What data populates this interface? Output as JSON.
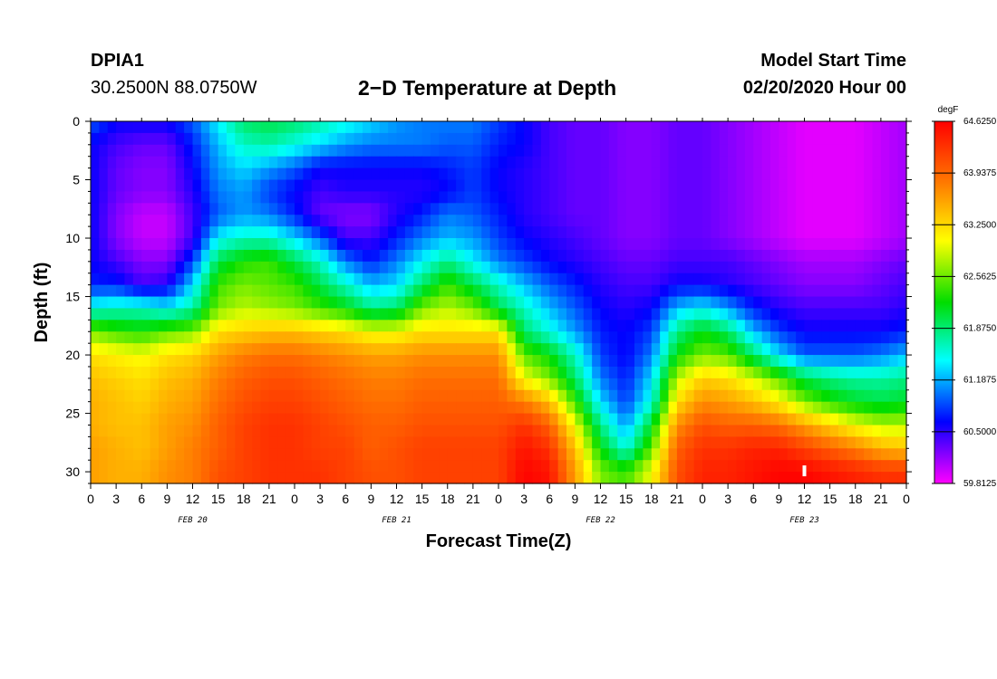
{
  "header": {
    "station": "DPIA1",
    "coords": "30.2500N 88.0750W",
    "title": "2−D Temperature at Depth",
    "start_label": "Model Start Time",
    "start_value": "02/20/2020 Hour 00"
  },
  "chart_data": {
    "type": "heatmap",
    "title": "2−D Temperature at Depth",
    "xlabel": "Forecast Time(Z)",
    "ylabel": "Depth (ft)",
    "colorbar_unit": "degF",
    "x_range_hours": [
      0,
      96
    ],
    "y_range_ft": [
      0,
      31
    ],
    "x_tick_labels": [
      "0",
      "3",
      "6",
      "9",
      "12",
      "15",
      "18",
      "21",
      "0",
      "3",
      "6",
      "9",
      "12",
      "15",
      "18",
      "21",
      "0",
      "3",
      "6",
      "9",
      "12",
      "15",
      "18",
      "21",
      "0",
      "3",
      "6",
      "9",
      "12",
      "15",
      "18",
      "21",
      "0"
    ],
    "y_ticks": [
      0,
      5,
      10,
      15,
      20,
      25,
      30
    ],
    "date_labels": [
      {
        "label": "FEB 20",
        "hour": 12
      },
      {
        "label": "FEB 21",
        "hour": 36
      },
      {
        "label": "FEB 22",
        "hour": 60
      },
      {
        "label": "FEB 23",
        "hour": 84
      }
    ],
    "colorbar_labels": [
      "64.6250",
      "63.9375",
      "63.2500",
      "62.5625",
      "61.8750",
      "61.1875",
      "60.5000",
      "59.8125"
    ],
    "colors": [
      "#ff0000",
      "#ff7a00",
      "#ffff00",
      "#00dd00",
      "#00ffff",
      "#0000ff",
      "#ff00ff"
    ],
    "vmin": 59.8125,
    "vmax": 64.625,
    "x_hours": [
      0,
      3,
      6,
      9,
      12,
      15,
      18,
      21,
      24,
      27,
      30,
      33,
      36,
      39,
      42,
      45,
      48,
      51,
      54,
      57,
      60,
      63,
      66,
      69,
      72,
      75,
      78,
      81,
      84,
      87,
      90,
      93,
      96
    ],
    "depths_ft": [
      0,
      2,
      4,
      6,
      8,
      10,
      12,
      14,
      16,
      18,
      20,
      22,
      24,
      26,
      28,
      30
    ],
    "temperature_degF": [
      [
        60.9,
        60.6,
        60.6,
        60.6,
        60.9,
        61.4,
        61.9,
        62.0,
        61.9,
        61.7,
        61.5,
        61.3,
        61.1,
        61.0,
        61.0,
        61.0,
        60.8,
        60.6,
        60.4,
        60.3,
        60.3,
        60.2,
        60.2,
        60.3,
        60.3,
        60.2,
        60.1,
        60.0,
        59.9,
        59.9,
        59.9,
        60.0,
        60.1
      ],
      [
        60.6,
        60.4,
        60.3,
        60.3,
        60.7,
        61.2,
        61.6,
        61.7,
        61.5,
        61.3,
        61.1,
        61.0,
        61.0,
        61.0,
        60.9,
        60.9,
        60.7,
        60.6,
        60.4,
        60.3,
        60.3,
        60.2,
        60.2,
        60.3,
        60.3,
        60.2,
        60.1,
        60.0,
        59.9,
        59.9,
        59.9,
        60.0,
        60.1
      ],
      [
        60.6,
        60.3,
        60.2,
        60.2,
        60.6,
        61.1,
        61.3,
        61.1,
        60.9,
        60.6,
        60.6,
        60.6,
        60.6,
        60.6,
        60.7,
        60.8,
        60.6,
        60.5,
        60.4,
        60.3,
        60.3,
        60.2,
        60.2,
        60.3,
        60.3,
        60.2,
        60.1,
        60.0,
        59.9,
        59.9,
        59.9,
        60.0,
        60.1
      ],
      [
        60.6,
        60.3,
        60.2,
        60.2,
        60.5,
        61.0,
        61.1,
        60.8,
        60.6,
        60.4,
        60.5,
        60.5,
        60.5,
        60.5,
        60.6,
        60.8,
        60.6,
        60.5,
        60.4,
        60.3,
        60.3,
        60.2,
        60.2,
        60.3,
        60.3,
        60.2,
        60.1,
        60.0,
        59.9,
        59.9,
        59.9,
        60.0,
        60.1
      ],
      [
        60.6,
        60.2,
        60.0,
        60.0,
        60.4,
        60.9,
        61.1,
        61.0,
        60.7,
        60.3,
        60.2,
        60.2,
        60.5,
        60.7,
        61.0,
        60.9,
        60.7,
        60.5,
        60.4,
        60.3,
        60.3,
        60.2,
        60.2,
        60.3,
        60.3,
        60.2,
        60.1,
        60.0,
        59.9,
        59.9,
        59.9,
        60.0,
        60.1
      ],
      [
        60.6,
        60.2,
        60.0,
        60.0,
        60.4,
        61.4,
        61.6,
        61.6,
        61.3,
        60.9,
        60.4,
        60.4,
        60.7,
        61.0,
        61.2,
        61.1,
        60.8,
        60.6,
        60.5,
        60.4,
        60.3,
        60.2,
        60.2,
        60.3,
        60.3,
        60.2,
        60.1,
        60.0,
        59.9,
        59.9,
        59.9,
        60.0,
        60.1
      ],
      [
        60.6,
        60.4,
        60.2,
        60.2,
        60.8,
        62.0,
        62.3,
        62.4,
        62.0,
        61.6,
        61.0,
        60.7,
        61.0,
        61.4,
        61.8,
        61.4,
        61.0,
        60.8,
        60.6,
        60.5,
        60.4,
        60.3,
        60.3,
        60.4,
        60.4,
        60.4,
        60.3,
        60.2,
        60.1,
        60.1,
        60.1,
        60.2,
        60.3
      ],
      [
        60.7,
        60.7,
        60.4,
        60.5,
        61.3,
        62.4,
        62.6,
        62.5,
        62.4,
        62.0,
        61.6,
        61.2,
        61.3,
        61.9,
        62.4,
        62.0,
        61.6,
        61.2,
        60.9,
        60.7,
        60.5,
        60.4,
        60.4,
        60.6,
        60.6,
        60.5,
        60.4,
        60.3,
        60.2,
        60.2,
        60.2,
        60.3,
        60.4
      ],
      [
        61.5,
        61.6,
        61.6,
        61.4,
        61.7,
        62.6,
        62.8,
        62.7,
        62.6,
        62.4,
        62.2,
        61.8,
        61.9,
        62.6,
        62.8,
        62.6,
        62.0,
        61.6,
        61.2,
        60.9,
        60.6,
        60.5,
        60.6,
        61.2,
        61.4,
        61.1,
        60.7,
        60.5,
        60.4,
        60.4,
        60.4,
        60.4,
        60.5
      ],
      [
        62.6,
        62.4,
        62.3,
        62.5,
        62.6,
        63.2,
        63.3,
        63.4,
        63.4,
        63.3,
        63.2,
        63.0,
        63.0,
        63.2,
        63.2,
        63.2,
        63.2,
        61.9,
        61.5,
        61.1,
        60.7,
        60.6,
        60.8,
        61.8,
        62.2,
        61.9,
        61.2,
        60.8,
        60.6,
        60.6,
        60.6,
        60.6,
        60.7
      ],
      [
        63.2,
        63.1,
        63.0,
        63.2,
        63.3,
        63.6,
        63.8,
        63.9,
        63.9,
        63.8,
        63.7,
        63.6,
        63.6,
        63.7,
        63.7,
        63.7,
        63.7,
        62.5,
        62.2,
        61.6,
        60.8,
        60.6,
        61.0,
        62.2,
        62.6,
        62.5,
        61.9,
        61.3,
        60.9,
        60.9,
        60.9,
        61.0,
        61.2
      ],
      [
        63.4,
        63.3,
        63.2,
        63.4,
        63.5,
        63.8,
        64.0,
        64.1,
        64.1,
        64.0,
        63.9,
        63.8,
        63.8,
        63.9,
        63.9,
        63.9,
        63.9,
        63.0,
        62.6,
        61.9,
        61.0,
        60.7,
        61.3,
        62.8,
        63.3,
        63.2,
        62.9,
        62.5,
        62.0,
        61.8,
        61.7,
        61.7,
        61.8
      ],
      [
        63.5,
        63.4,
        63.3,
        63.5,
        63.6,
        63.9,
        64.1,
        64.2,
        64.2,
        64.1,
        64.0,
        63.9,
        63.9,
        64.0,
        64.0,
        64.0,
        64.0,
        63.8,
        63.4,
        62.4,
        61.3,
        60.8,
        61.5,
        63.2,
        63.7,
        63.6,
        63.4,
        63.1,
        62.6,
        62.3,
        62.1,
        62.0,
        62.1
      ],
      [
        63.5,
        63.4,
        63.4,
        63.6,
        63.7,
        64.0,
        64.2,
        64.3,
        64.3,
        64.2,
        64.1,
        64.0,
        64.0,
        64.1,
        64.1,
        64.1,
        64.1,
        64.3,
        64.0,
        63.0,
        61.8,
        61.1,
        62.1,
        63.7,
        64.1,
        64.0,
        64.0,
        63.9,
        63.6,
        63.3,
        63.0,
        62.8,
        62.8
      ],
      [
        63.6,
        63.5,
        63.4,
        63.6,
        63.8,
        64.0,
        64.2,
        64.3,
        64.3,
        64.2,
        64.2,
        64.0,
        64.1,
        64.2,
        64.2,
        64.2,
        64.2,
        64.5,
        64.3,
        63.4,
        62.2,
        61.5,
        62.5,
        64.0,
        64.3,
        64.3,
        64.4,
        64.4,
        64.2,
        64.0,
        63.8,
        63.5,
        63.4
      ],
      [
        63.6,
        63.5,
        63.5,
        63.7,
        63.8,
        64.1,
        64.2,
        64.3,
        64.3,
        64.3,
        64.2,
        64.1,
        64.1,
        64.2,
        64.2,
        64.2,
        64.2,
        64.6,
        64.5,
        63.6,
        62.6,
        62.4,
        63.0,
        64.1,
        64.4,
        64.4,
        64.5,
        64.6,
        64.6,
        64.5,
        64.4,
        64.3,
        64.3
      ]
    ],
    "marker": {
      "hour": 84,
      "depth_ft": 30
    }
  }
}
